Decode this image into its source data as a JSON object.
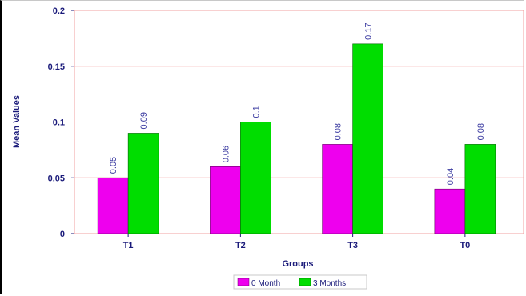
{
  "chart_data": {
    "type": "bar",
    "categories": [
      "T1",
      "T2",
      "T3",
      "T0"
    ],
    "series": [
      {
        "name": "0 Month",
        "values": [
          0.05,
          0.06,
          0.08,
          0.04
        ],
        "color": "#ee00ee"
      },
      {
        "name": "3 Months",
        "values": [
          0.09,
          0.1,
          0.17,
          0.08
        ],
        "color": "#00dd00"
      }
    ],
    "data_labels": [
      [
        "0.05",
        "0.06",
        "0.08",
        "0.04"
      ],
      [
        "0.09",
        "0.1",
        "0.17",
        "0.08"
      ]
    ],
    "title": "",
    "xlabel": "Groups",
    "ylabel": "Mean Values",
    "ylim": [
      0,
      0.2
    ],
    "yticks": [
      0,
      0.05,
      0.1,
      0.15,
      0.2
    ],
    "ytick_labels": [
      "0",
      "0.05",
      "0.1",
      "0.15",
      "0.2"
    ],
    "grid": true,
    "gridline_color": "#f2a0a0",
    "legend_position": "bottom-center"
  }
}
